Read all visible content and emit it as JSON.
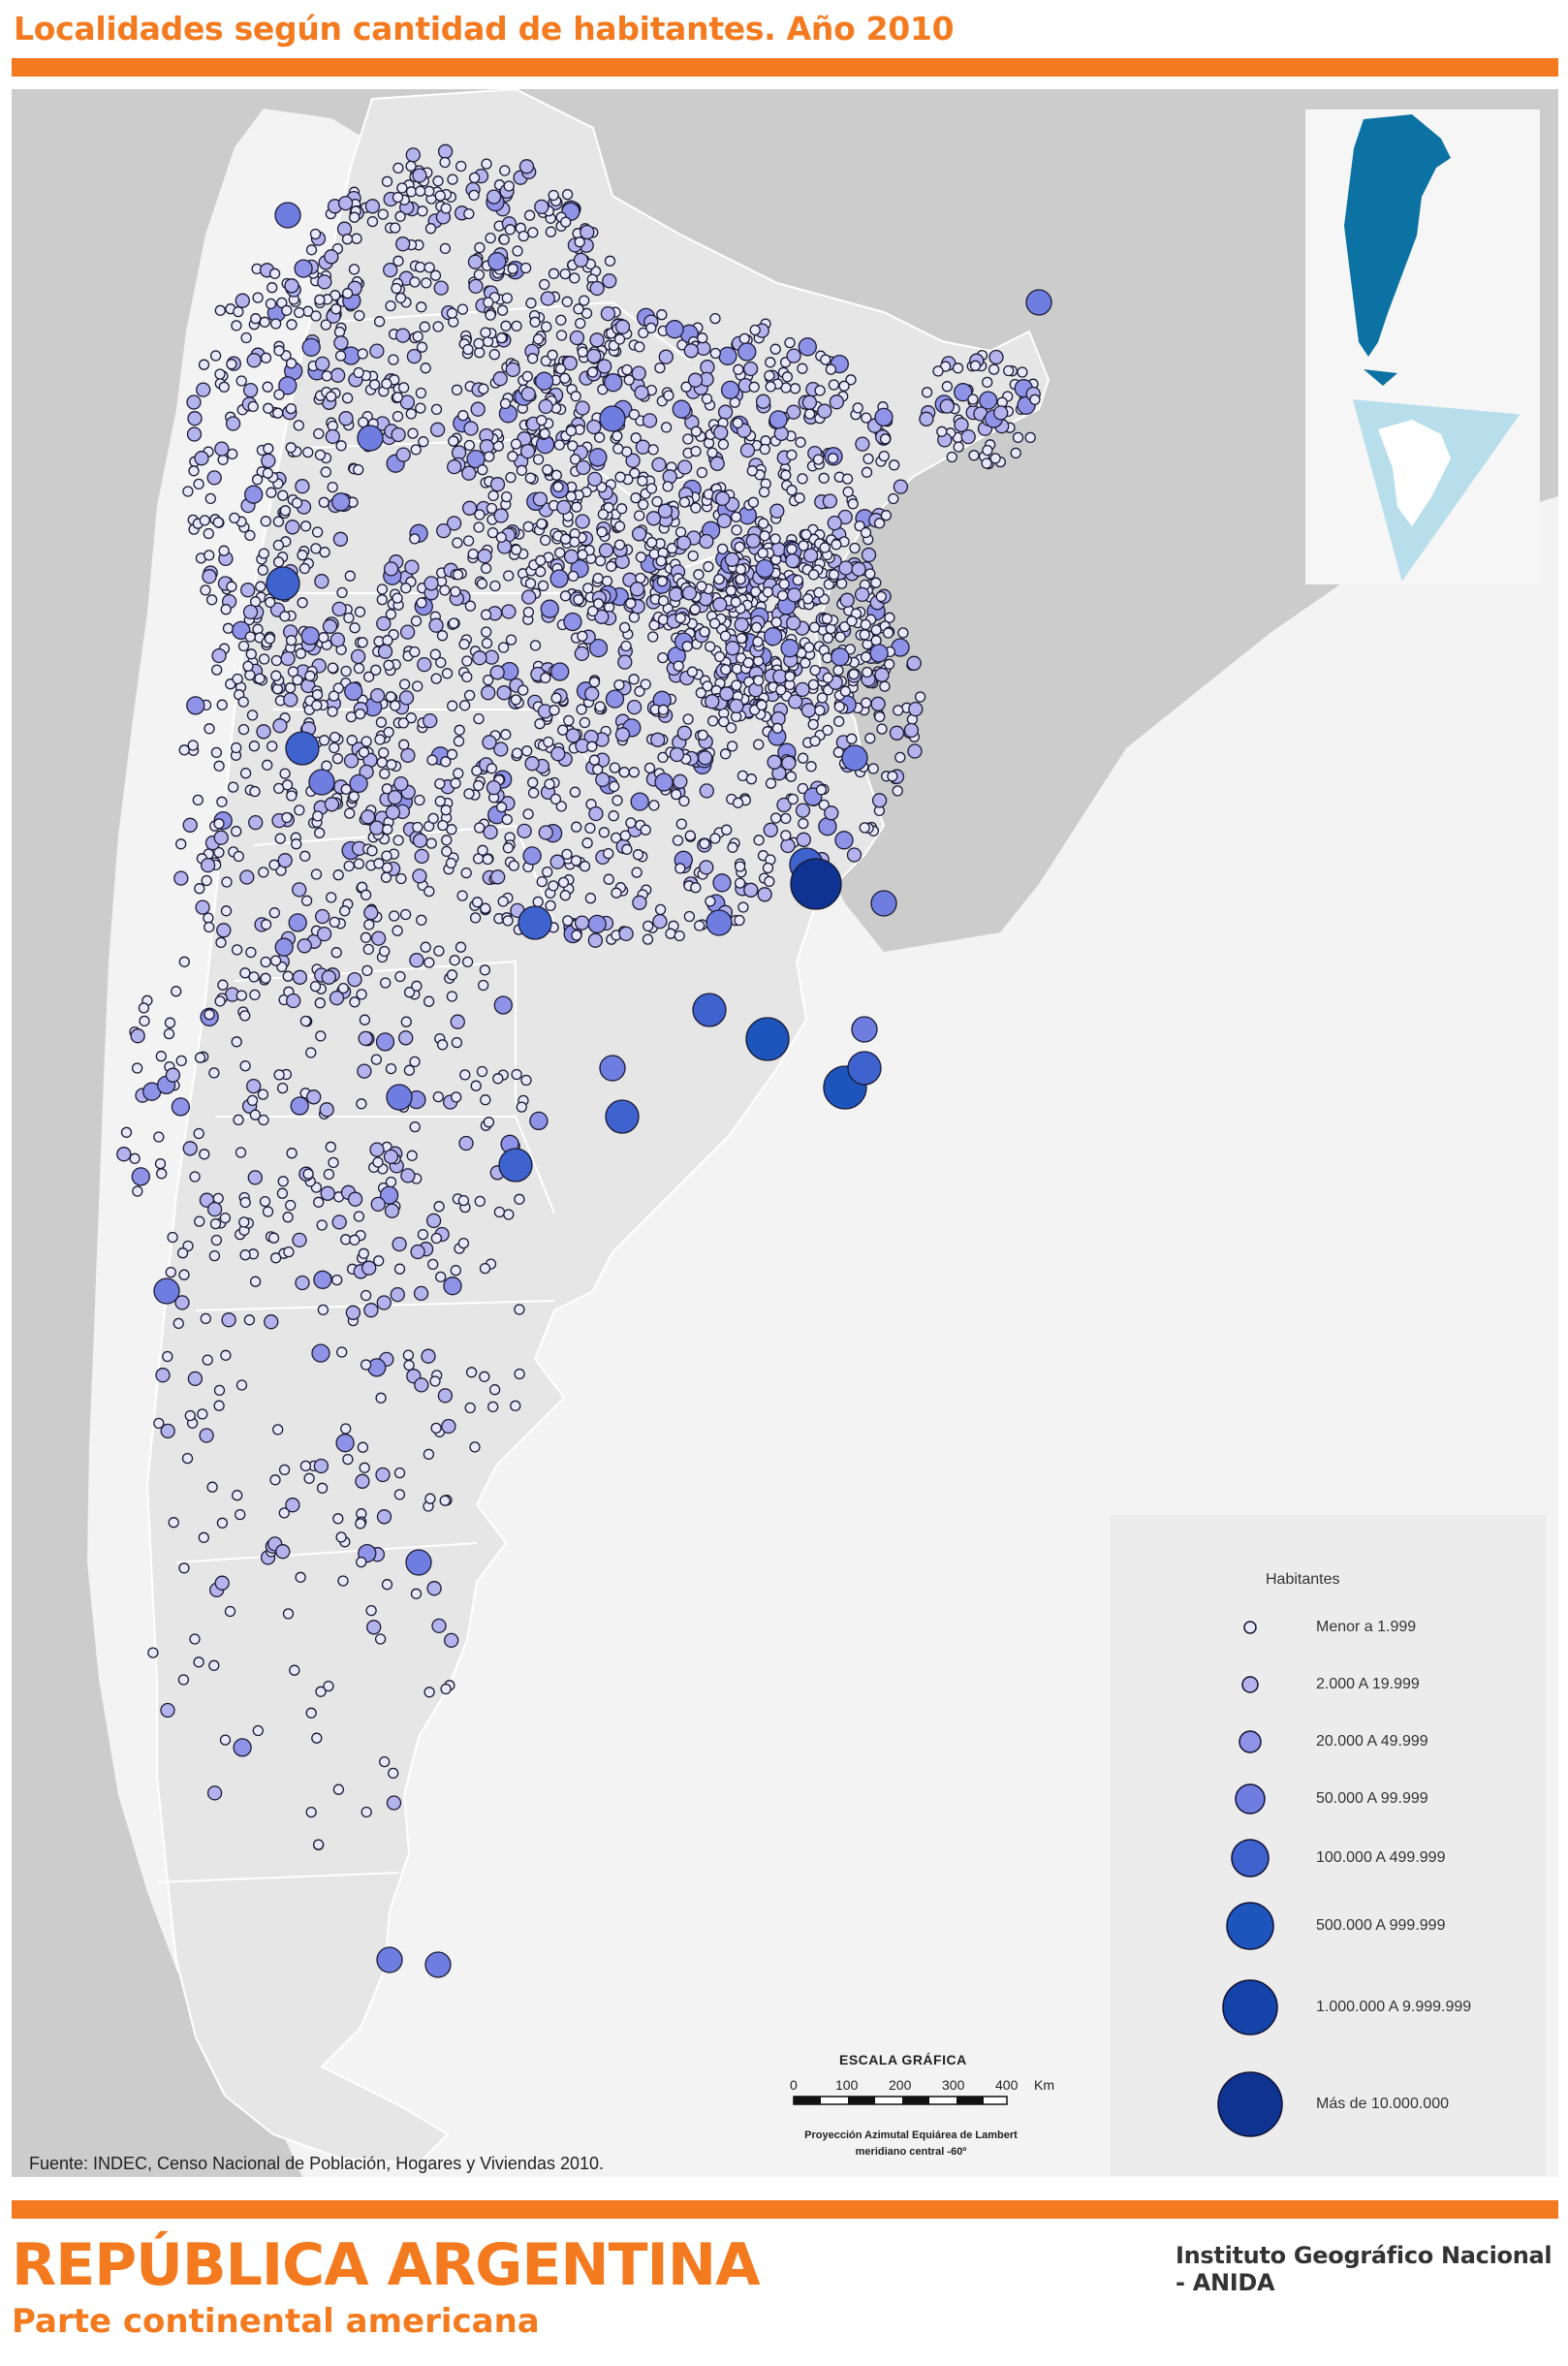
{
  "header": {
    "title": "Localidades según cantidad de habitantes. Año 2010"
  },
  "colors": {
    "accent": "#f47a1f",
    "ocean": "#ffffff",
    "neighbor_land": "#cccccc",
    "argentina_land": "#e6e6e6",
    "inset_land": "#0b72a3",
    "antarctic_sector": "#6fc3df"
  },
  "legend": {
    "title": "Habitantes",
    "classes": [
      {
        "label": "Menor a 1.999",
        "color": "#e9e7fb"
      },
      {
        "label": "2.000 A 19.999",
        "color": "#b4b3ee"
      },
      {
        "label": "20.000 A 49.999",
        "color": "#8f93e8"
      },
      {
        "label": "50.000 A 99.999",
        "color": "#6f7de0"
      },
      {
        "label": "100.000 A 499.999",
        "color": "#3e63cf"
      },
      {
        "label": "500.000 A 999.999",
        "color": "#1d55bd"
      },
      {
        "label": "1.000.000 A 9.999.999",
        "color": "#1444aa"
      },
      {
        "label": "Más de 10.000.000",
        "color": "#0f3391"
      }
    ]
  },
  "scale": {
    "title": "ESCALA GRÁFICA",
    "ticks": [
      "0",
      "100",
      "200",
      "300",
      "400"
    ],
    "unit": "Km",
    "projection_line1": "Proyección Azimutal Equiárea de Lambert",
    "projection_line2": "meridiano central -60º"
  },
  "source": "Fuente: INDEC, Censo Nacional de Población, Hogares y Viviendas 2010.",
  "footer": {
    "country": "REPÚBLICA ARGENTINA",
    "subtitle": "Parte continental americana",
    "institute": "Instituto Geográfico Nacional - ANIDA"
  }
}
